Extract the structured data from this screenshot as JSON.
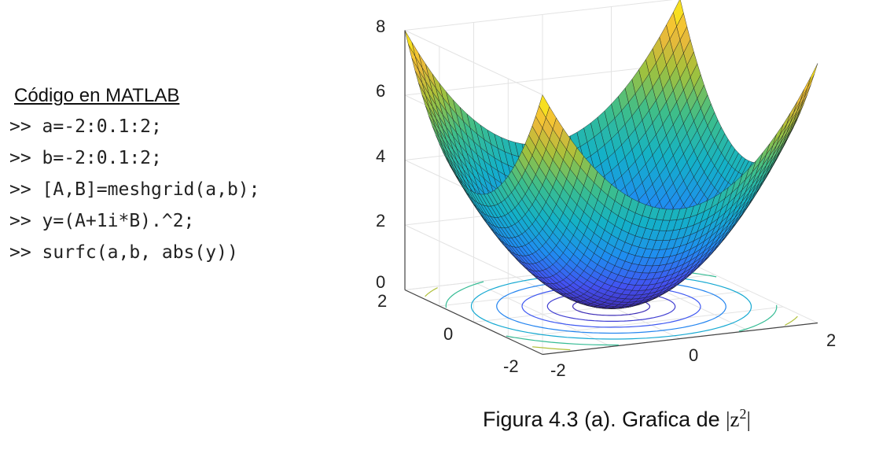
{
  "code": {
    "heading": "Código en MATLAB",
    "lines": [
      ">> a=-2:0.1:2;",
      ">> b=-2:0.1:2;",
      ">> [A,B]=meshgrid(a,b);",
      ">> y=(A+1i*B).^2;",
      ">> surfc(a,b, abs(y))"
    ]
  },
  "figure": {
    "z_ticks": [
      "8",
      "6",
      "4",
      "2",
      "0"
    ],
    "y_ticks": [
      "2",
      "0",
      "-2"
    ],
    "x_ticks": [
      "-2",
      "0",
      "2"
    ],
    "caption": "Figura 4.3 (a). Grafica de",
    "caption_math": {
      "open": "|z",
      "exponent": "2",
      "close": "|"
    }
  }
}
